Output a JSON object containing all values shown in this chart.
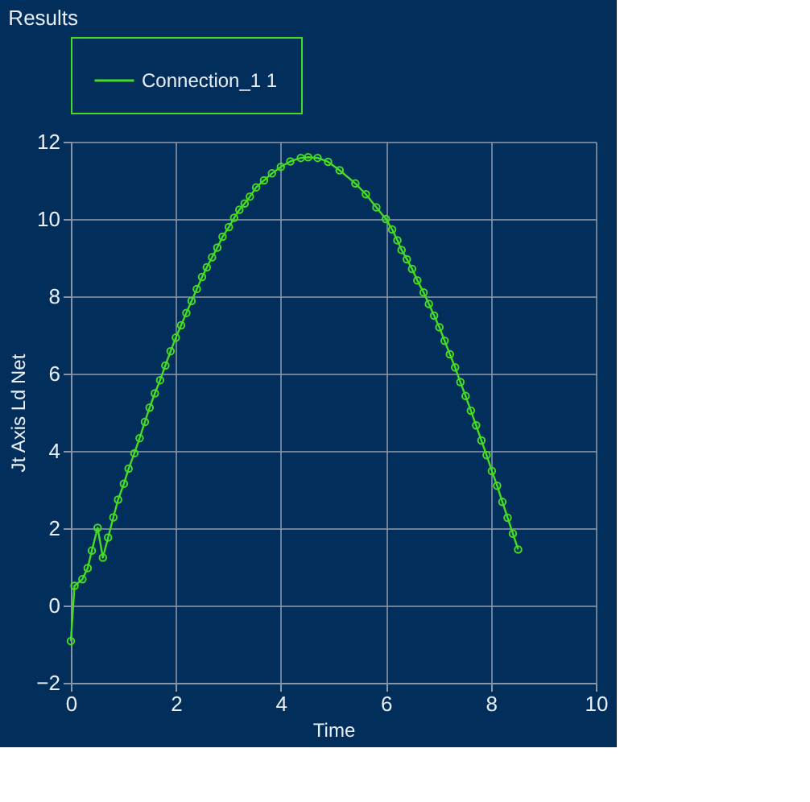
{
  "chart_data": {
    "type": "line",
    "title": "Results",
    "xlabel": "Time",
    "ylabel": "Jt Axis Ld Net",
    "x": [
      0,
      0.07,
      0.22,
      0.32,
      0.4,
      0.51,
      0.61,
      0.71,
      0.81,
      0.9,
      1.01,
      1.1,
      1.21,
      1.31,
      1.41,
      1.5,
      1.6,
      1.7,
      1.8,
      1.9,
      2.0,
      2.1,
      2.2,
      2.3,
      2.4,
      2.5,
      2.59,
      2.69,
      2.79,
      2.89,
      3.01,
      3.11,
      3.21,
      3.31,
      3.41,
      3.53,
      3.68,
      3.83,
      4.0,
      4.18,
      4.38,
      4.52,
      4.7,
      4.9,
      5.12,
      5.42,
      5.62,
      5.82,
      6.0,
      6.12,
      6.22,
      6.3,
      6.4,
      6.5,
      6.6,
      6.72,
      6.82,
      6.92,
      7.02,
      7.12,
      7.22,
      7.32,
      7.42,
      7.52,
      7.62,
      7.72,
      7.82,
      7.92,
      8.02,
      8.12,
      8.22,
      8.32,
      8.42,
      8.52
    ],
    "series": [
      {
        "name": "Connection_1 1",
        "color": "#44dd22",
        "values": [
          -0.92,
          0.51,
          0.68,
          0.97,
          1.42,
          2.01,
          1.24,
          1.76,
          2.28,
          2.74,
          3.15,
          3.54,
          3.94,
          4.33,
          4.75,
          5.12,
          5.49,
          5.83,
          6.21,
          6.58,
          6.93,
          7.25,
          7.57,
          7.88,
          8.19,
          8.5,
          8.75,
          9.01,
          9.26,
          9.54,
          9.79,
          10.03,
          10.24,
          10.4,
          10.58,
          10.82,
          11.0,
          11.18,
          11.35,
          11.49,
          11.58,
          11.6,
          11.58,
          11.48,
          11.26,
          10.92,
          10.64,
          10.3,
          10.0,
          9.73,
          9.45,
          9.2,
          8.96,
          8.71,
          8.41,
          8.1,
          7.8,
          7.5,
          7.2,
          6.85,
          6.5,
          6.16,
          5.78,
          5.42,
          5.04,
          4.66,
          4.27,
          3.89,
          3.48,
          3.1,
          2.68,
          2.27,
          1.86,
          1.45
        ]
      }
    ],
    "xlim": [
      0,
      10
    ],
    "xticks": [
      0,
      2,
      4,
      6,
      8,
      10
    ],
    "ylim": [
      -2,
      12
    ],
    "yticks": [
      -2,
      0,
      2,
      4,
      6,
      8,
      10,
      12
    ],
    "grid": true,
    "legend": "top",
    "marker": "circle",
    "line_style": "solid"
  }
}
